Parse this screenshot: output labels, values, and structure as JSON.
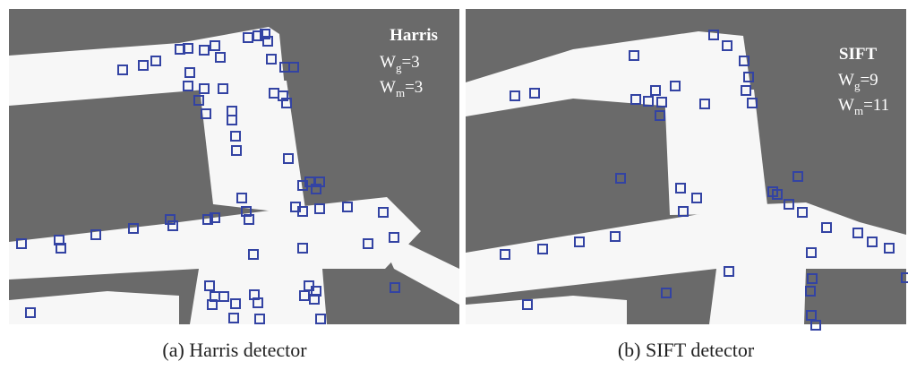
{
  "panels": [
    {
      "detector": "Harris",
      "params": [
        {
          "symbol": "W",
          "subscript": "g",
          "value": "=3"
        },
        {
          "symbol": "W",
          "subscript": "m",
          "value": "=3"
        }
      ],
      "caption": "(a) Harris detector"
    },
    {
      "detector": "SIFT",
      "params": [
        {
          "symbol": "W",
          "subscript": "g",
          "value": "=9"
        },
        {
          "symbol": "W",
          "subscript": "m",
          "value": "=11"
        }
      ],
      "caption": "(b) SIFT detector"
    }
  ]
}
